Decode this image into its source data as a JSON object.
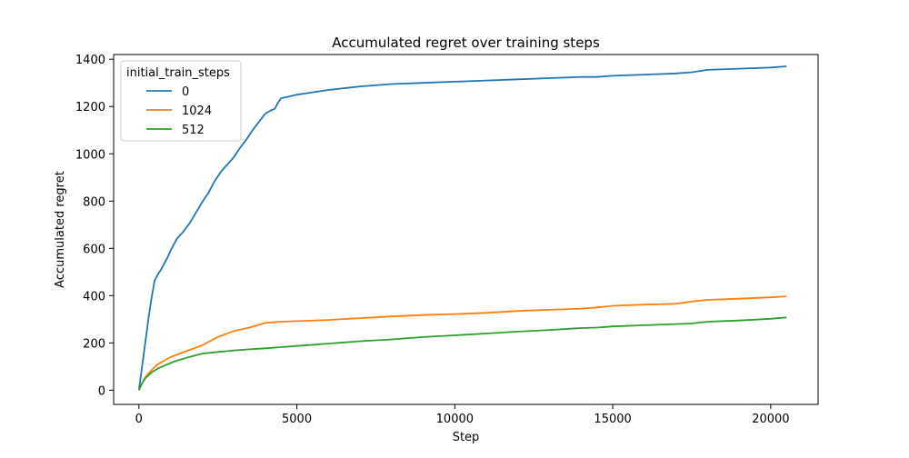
{
  "chart_data": {
    "type": "line",
    "title": "Accumulated regret over training steps",
    "xlabel": "Step",
    "ylabel": "Accumulated regret",
    "xlim": [
      -800,
      21500
    ],
    "ylim": [
      -60,
      1420
    ],
    "xticks": [
      0,
      5000,
      10000,
      15000,
      20000
    ],
    "yticks": [
      0,
      200,
      400,
      600,
      800,
      1000,
      1200,
      1400
    ],
    "grid": false,
    "legend": {
      "title": "initial_train_steps",
      "placement": "top-left"
    },
    "series": [
      {
        "name": "0",
        "color": "#1f77b4",
        "x": [
          0,
          100,
          200,
          300,
          400,
          500,
          600,
          700,
          800,
          900,
          1000,
          1200,
          1400,
          1600,
          1800,
          2000,
          2200,
          2400,
          2600,
          2800,
          3000,
          3200,
          3400,
          3600,
          3800,
          4000,
          4200,
          4300,
          4400,
          4500,
          5000,
          5500,
          6000,
          7000,
          8000,
          9000,
          10000,
          11000,
          12000,
          13000,
          14000,
          14500,
          15000,
          16000,
          17000,
          17500,
          18000,
          19000,
          20000,
          20500
        ],
        "y": [
          0,
          100,
          200,
          300,
          390,
          465,
          490,
          510,
          535,
          560,
          590,
          640,
          670,
          705,
          750,
          795,
          835,
          885,
          925,
          955,
          985,
          1025,
          1060,
          1100,
          1135,
          1170,
          1185,
          1190,
          1215,
          1235,
          1250,
          1260,
          1270,
          1285,
          1295,
          1300,
          1305,
          1310,
          1315,
          1320,
          1325,
          1325,
          1330,
          1335,
          1340,
          1345,
          1355,
          1360,
          1365,
          1370
        ]
      },
      {
        "name": "1024",
        "color": "#ff7f0e",
        "x": [
          0,
          100,
          200,
          400,
          600,
          800,
          1000,
          1200,
          1500,
          2000,
          2500,
          3000,
          3500,
          4000,
          4500,
          5000,
          6000,
          7000,
          8000,
          9000,
          10000,
          11000,
          12000,
          13000,
          14000,
          14500,
          15000,
          16000,
          17000,
          17500,
          18000,
          19000,
          20000,
          20500
        ],
        "y": [
          0,
          30,
          55,
          85,
          110,
          125,
          140,
          150,
          165,
          190,
          225,
          250,
          265,
          285,
          290,
          292,
          297,
          305,
          312,
          318,
          322,
          327,
          335,
          340,
          345,
          350,
          357,
          362,
          365,
          375,
          382,
          387,
          393,
          397
        ]
      },
      {
        "name": "512",
        "color": "#2ca02c",
        "x": [
          0,
          100,
          200,
          400,
          600,
          800,
          1000,
          1200,
          1500,
          2000,
          2500,
          3000,
          3500,
          4000,
          4500,
          5000,
          6000,
          7000,
          8000,
          9000,
          10000,
          11000,
          12000,
          13000,
          14000,
          14500,
          15000,
          16000,
          17000,
          17500,
          18000,
          19000,
          20000,
          20500
        ],
        "y": [
          0,
          30,
          50,
          75,
          92,
          103,
          115,
          125,
          137,
          155,
          162,
          168,
          173,
          177,
          182,
          187,
          197,
          207,
          215,
          225,
          232,
          240,
          248,
          255,
          263,
          265,
          270,
          275,
          280,
          282,
          290,
          295,
          302,
          308
        ]
      }
    ]
  }
}
